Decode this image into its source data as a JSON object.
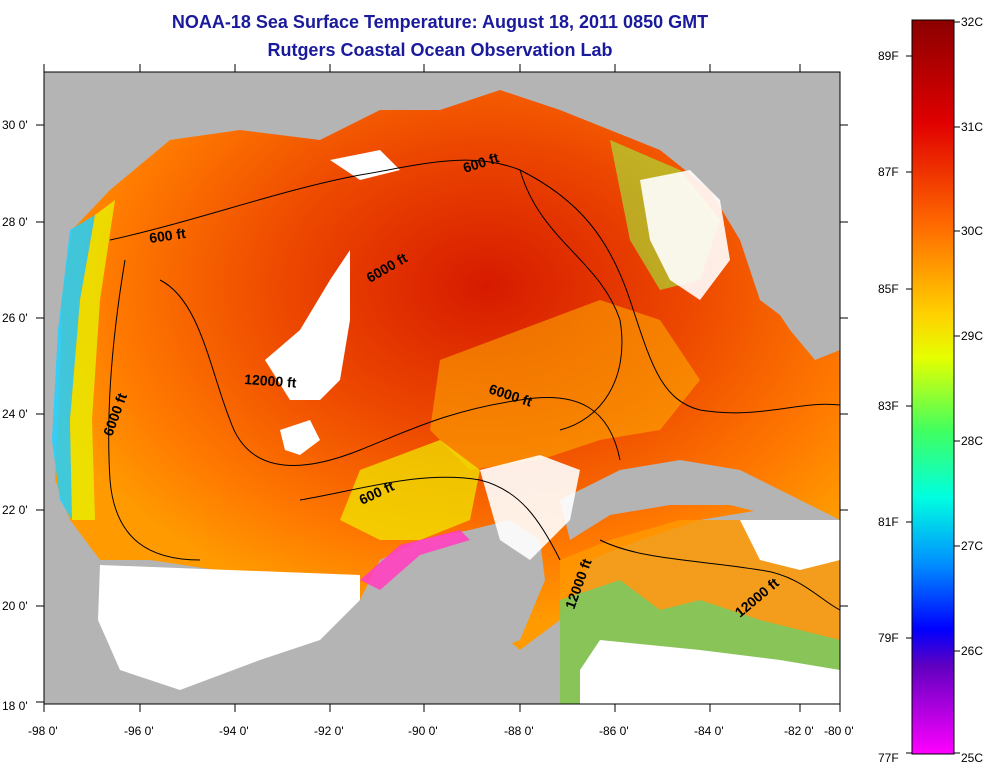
{
  "header": {
    "title": "NOAA-18 Sea Surface Temperature:  August 18, 2011 0850 GMT",
    "subtitle": "Rutgers Coastal Ocean Observation Lab"
  },
  "axes": {
    "longitude_ticks": [
      "-98 0'",
      "-96 0'",
      "-94 0'",
      "-92 0'",
      "-90 0'",
      "-88 0'",
      "-86 0'",
      "-84 0'",
      "-82 0'",
      "-80 0'"
    ],
    "latitude_ticks": [
      "30 0'",
      "28 0'",
      "26 0'",
      "24 0'",
      "22 0'",
      "20 0'",
      "18 0'"
    ]
  },
  "contours": {
    "c1": "600 ft",
    "c2": "600 ft",
    "c3": "6000 ft",
    "c4": "12000 ft",
    "c5": "6000 ft",
    "c6": "6000 ft",
    "c7": "600 ft",
    "c8": "12000 ft",
    "c9": "12000 ft"
  },
  "colorbar": {
    "celsius": [
      "32C",
      "31C",
      "30C",
      "29C",
      "28C",
      "27C",
      "26C",
      "25C"
    ],
    "fahrenheit": [
      "89F",
      "87F",
      "85F",
      "83F",
      "81F",
      "79F",
      "77F"
    ]
  },
  "colors": {
    "land": "#b4b4b4",
    "cloud": "#ffffff",
    "title": "#1a1a9c"
  }
}
